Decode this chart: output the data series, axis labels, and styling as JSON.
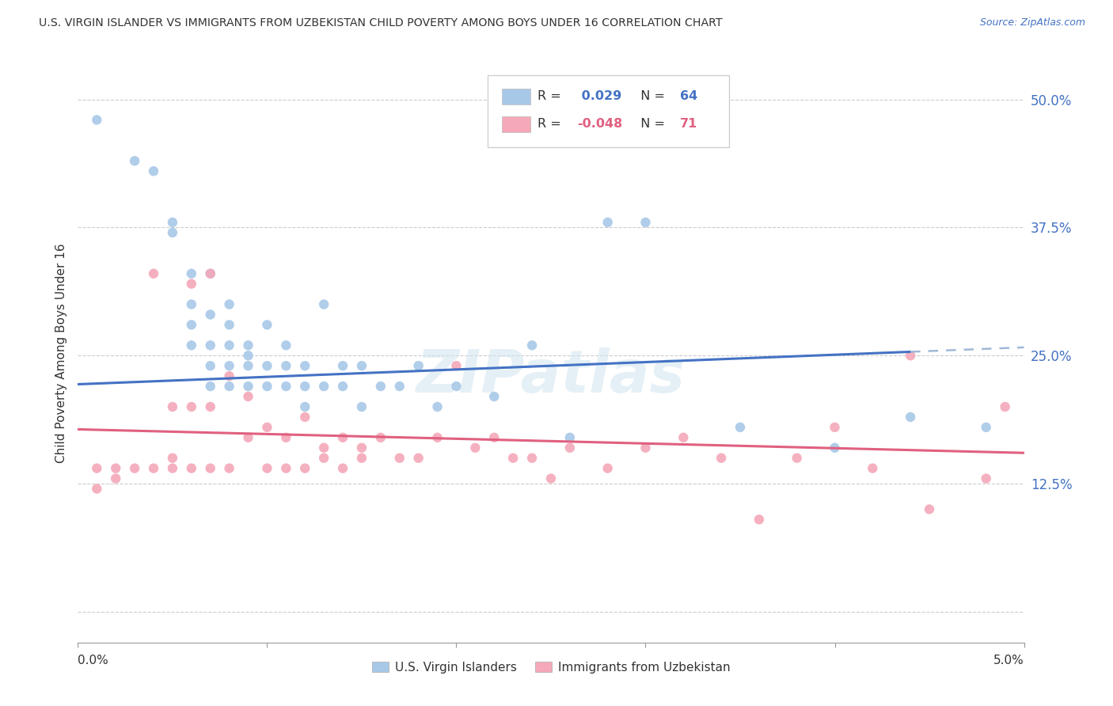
{
  "title": "U.S. VIRGIN ISLANDER VS IMMIGRANTS FROM UZBEKISTAN CHILD POVERTY AMONG BOYS UNDER 16 CORRELATION CHART",
  "source": "Source: ZipAtlas.com",
  "ylabel": "Child Poverty Among Boys Under 16",
  "yticks": [
    0.0,
    0.125,
    0.25,
    0.375,
    0.5
  ],
  "ytick_labels": [
    "",
    "12.5%",
    "25.0%",
    "37.5%",
    "50.0%"
  ],
  "series1_color": "#a8c8e8",
  "series2_color": "#f4a8b8",
  "trendline1_color": "#4472c4",
  "trendline1_dashed_color": "#a0b8d8",
  "trendline2_color": "#e06080",
  "watermark": "ZIPatlas",
  "xmin": 0.0,
  "xmax": 0.05,
  "ymin": -0.03,
  "ymax": 0.535,
  "series1_x": [
    0.001,
    0.003,
    0.004,
    0.005,
    0.005,
    0.006,
    0.006,
    0.006,
    0.006,
    0.007,
    0.007,
    0.007,
    0.007,
    0.007,
    0.008,
    0.008,
    0.008,
    0.008,
    0.008,
    0.009,
    0.009,
    0.009,
    0.009,
    0.01,
    0.01,
    0.01,
    0.011,
    0.011,
    0.011,
    0.012,
    0.012,
    0.012,
    0.013,
    0.013,
    0.014,
    0.014,
    0.015,
    0.015,
    0.016,
    0.017,
    0.018,
    0.019,
    0.02,
    0.022,
    0.024,
    0.026,
    0.028,
    0.03,
    0.035,
    0.04,
    0.044,
    0.048
  ],
  "series1_y": [
    0.48,
    0.44,
    0.43,
    0.37,
    0.38,
    0.33,
    0.3,
    0.28,
    0.26,
    0.33,
    0.29,
    0.26,
    0.24,
    0.22,
    0.3,
    0.28,
    0.26,
    0.24,
    0.22,
    0.26,
    0.25,
    0.24,
    0.22,
    0.28,
    0.24,
    0.22,
    0.26,
    0.24,
    0.22,
    0.24,
    0.22,
    0.2,
    0.3,
    0.22,
    0.24,
    0.22,
    0.24,
    0.2,
    0.22,
    0.22,
    0.24,
    0.2,
    0.22,
    0.21,
    0.26,
    0.17,
    0.38,
    0.38,
    0.18,
    0.16,
    0.19,
    0.18
  ],
  "series2_x": [
    0.001,
    0.001,
    0.002,
    0.002,
    0.003,
    0.004,
    0.004,
    0.005,
    0.005,
    0.005,
    0.006,
    0.006,
    0.006,
    0.007,
    0.007,
    0.007,
    0.008,
    0.008,
    0.009,
    0.009,
    0.01,
    0.01,
    0.011,
    0.011,
    0.012,
    0.012,
    0.013,
    0.013,
    0.014,
    0.014,
    0.015,
    0.015,
    0.016,
    0.017,
    0.018,
    0.019,
    0.02,
    0.021,
    0.022,
    0.023,
    0.024,
    0.025,
    0.026,
    0.028,
    0.03,
    0.032,
    0.034,
    0.036,
    0.038,
    0.04,
    0.042,
    0.044,
    0.045,
    0.048,
    0.049
  ],
  "series2_y": [
    0.14,
    0.12,
    0.14,
    0.13,
    0.14,
    0.14,
    0.33,
    0.2,
    0.15,
    0.14,
    0.32,
    0.2,
    0.14,
    0.33,
    0.2,
    0.14,
    0.23,
    0.14,
    0.21,
    0.17,
    0.18,
    0.14,
    0.17,
    0.14,
    0.19,
    0.14,
    0.16,
    0.15,
    0.17,
    0.14,
    0.16,
    0.15,
    0.17,
    0.15,
    0.15,
    0.17,
    0.24,
    0.16,
    0.17,
    0.15,
    0.15,
    0.13,
    0.16,
    0.14,
    0.16,
    0.17,
    0.15,
    0.09,
    0.15,
    0.18,
    0.14,
    0.25,
    0.1,
    0.13,
    0.2
  ],
  "R1": 0.029,
  "N1": 64,
  "R2": -0.048,
  "N2": 71,
  "legend1_label": "U.S. Virgin Islanders",
  "legend2_label": "Immigrants from Uzbekistan"
}
